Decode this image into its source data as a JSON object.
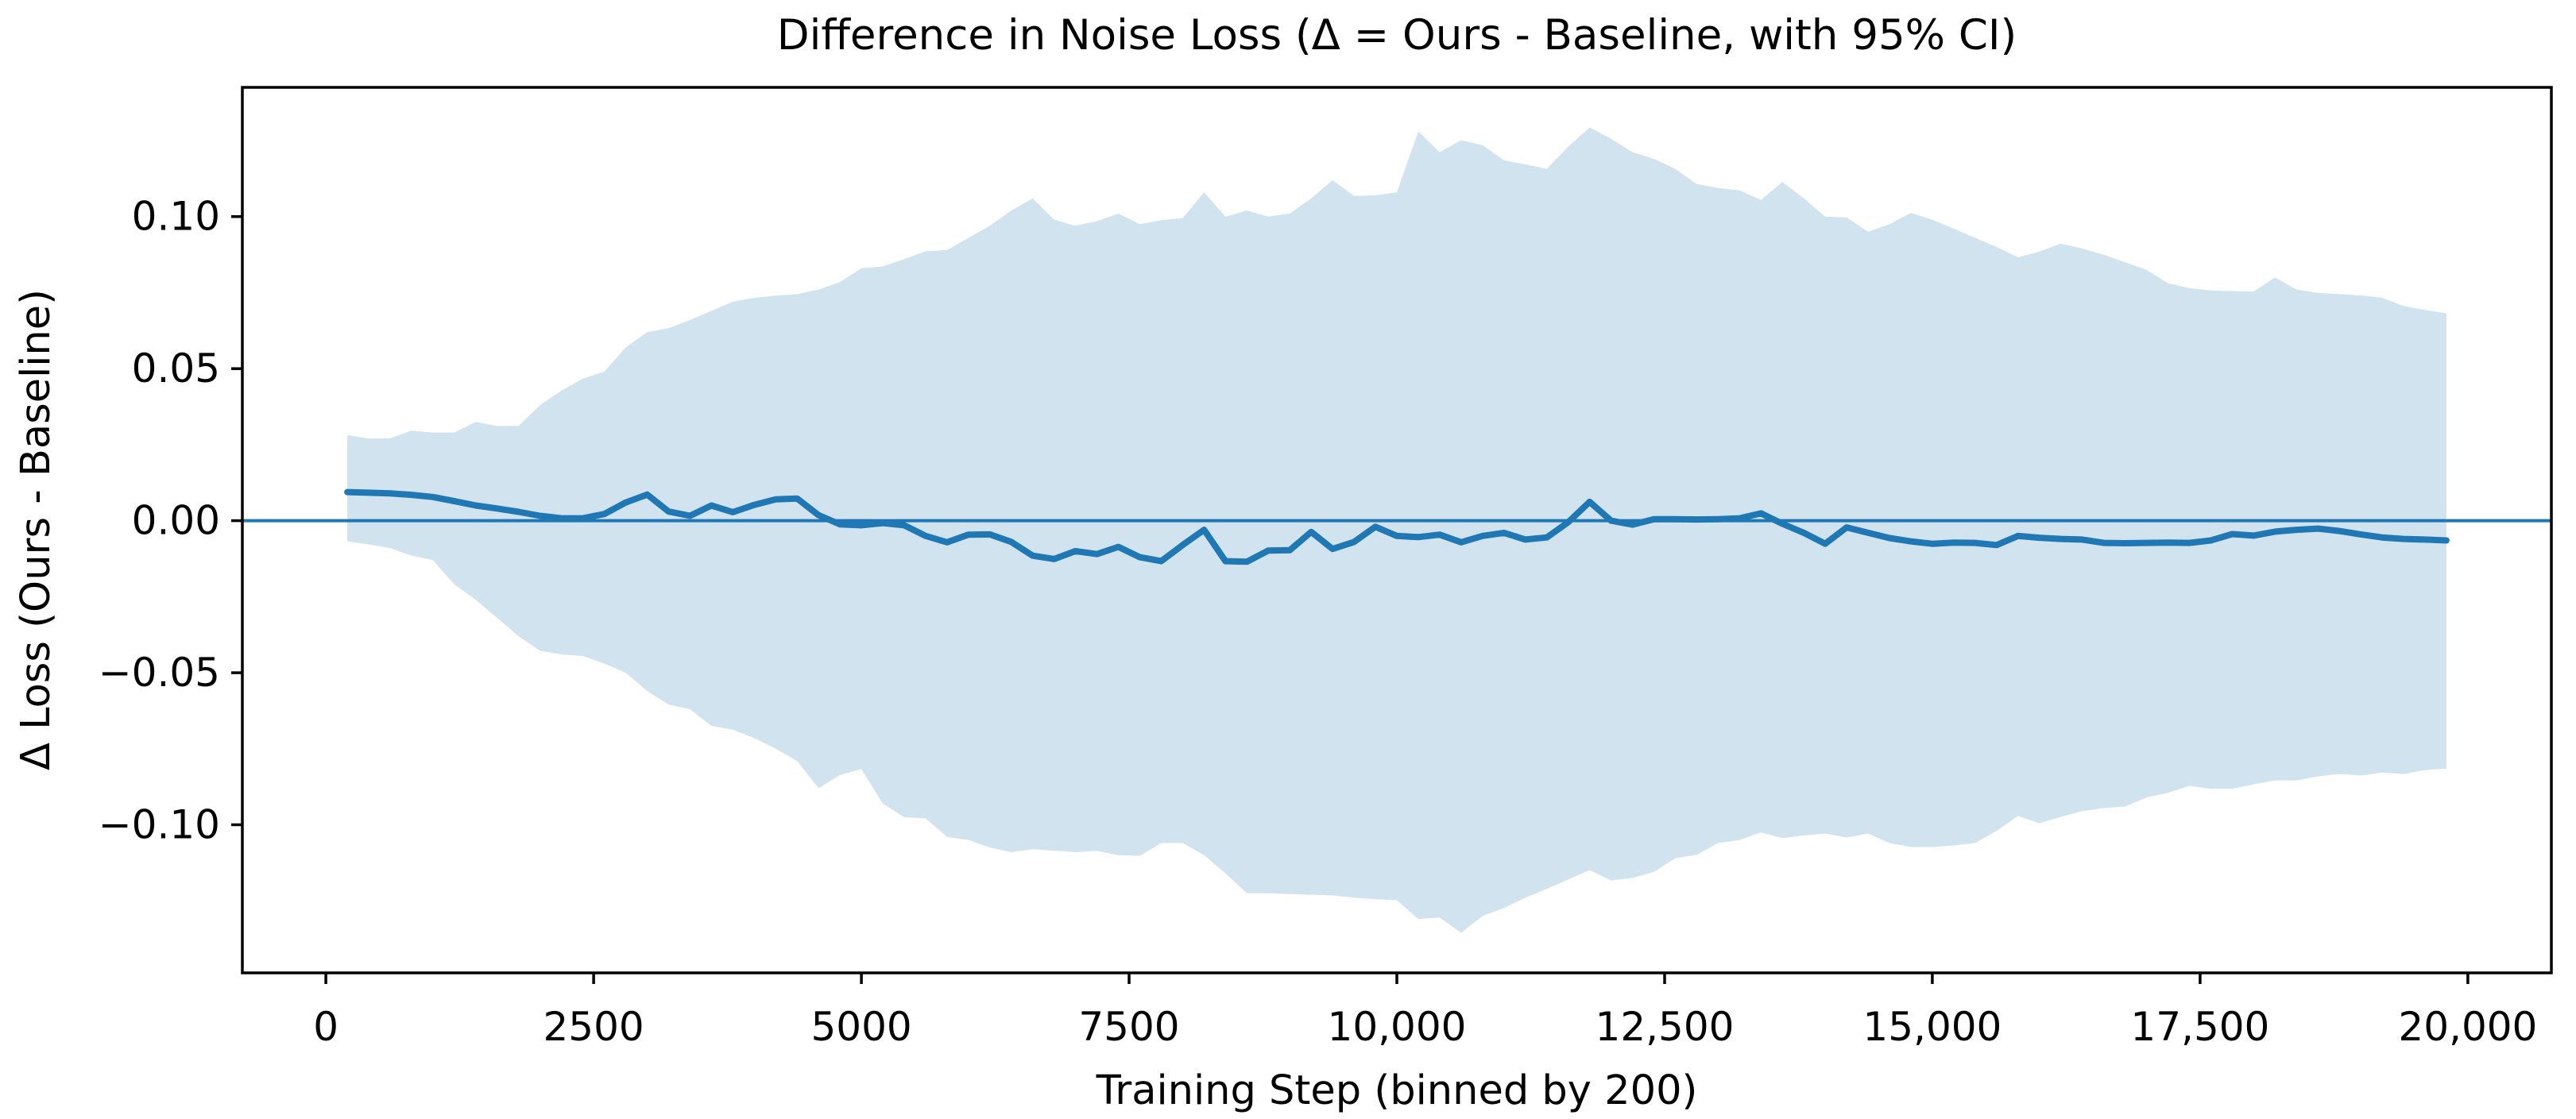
{
  "figure": {
    "background": "#ffffff",
    "title": "Difference in Noise Loss (Δ = Ours - Baseline, with 95% CI)"
  },
  "chart_data": {
    "type": "area",
    "title": "Difference in Noise Loss (Δ = Ours - Baseline, with 95% CI)",
    "xlabel": "Training Step (binned by 200)",
    "ylabel": "Δ Loss (Ours - Baseline)",
    "grid": false,
    "legend": "none",
    "zero_line": 0,
    "xlim": [
      -780,
      20780
    ],
    "ylim": [
      -0.1487,
      0.1425
    ],
    "colors": {
      "line": "#1f77b4",
      "zero_line": "#1f77b4",
      "band": "#d2e3f0",
      "axis": "#000000",
      "background": "#ffffff"
    },
    "xticks": {
      "values": [
        0,
        2500,
        5000,
        7500,
        10000,
        12500,
        15000,
        17500,
        20000
      ],
      "labels": [
        "0",
        "2500",
        "5000",
        "7500",
        "10,000",
        "12,500",
        "15,000",
        "17,500",
        "20,000"
      ]
    },
    "yticks": {
      "values": [
        0.1,
        0.05,
        0.0,
        -0.05,
        -0.1
      ],
      "labels": [
        "0.10",
        "0.05",
        "0.00",
        "−0.05",
        "−0.10"
      ]
    },
    "x": [
      200,
      400,
      600,
      800,
      1000,
      1200,
      1400,
      1600,
      1800,
      2000,
      2200,
      2400,
      2600,
      2800,
      3000,
      3200,
      3400,
      3600,
      3800,
      4000,
      4200,
      4400,
      4600,
      4800,
      5000,
      5200,
      5400,
      5600,
      5800,
      6000,
      6200,
      6400,
      6600,
      6800,
      7000,
      7200,
      7400,
      7600,
      7800,
      8000,
      8200,
      8400,
      8600,
      8800,
      9000,
      9200,
      9400,
      9600,
      9800,
      10000,
      10200,
      10400,
      10600,
      10800,
      11000,
      11200,
      11400,
      11600,
      11800,
      12000,
      12200,
      12400,
      12600,
      12800,
      13000,
      13200,
      13400,
      13600,
      13800,
      14000,
      14200,
      14400,
      14600,
      14800,
      15000,
      15200,
      15400,
      15600,
      15800,
      16000,
      16200,
      16400,
      16600,
      16800,
      17000,
      17200,
      17400,
      17600,
      17800,
      18000,
      18200,
      18400,
      18600,
      18800,
      19000,
      19200,
      19400,
      19600,
      19800
    ],
    "series": [
      {
        "name": "Δ mean (Ours − Baseline)",
        "role": "mean",
        "values": [
          0.0094,
          0.0092,
          0.009,
          0.0085,
          0.0078,
          0.0064,
          0.005,
          0.004,
          0.0029,
          0.0016,
          0.0008,
          0.0008,
          0.0022,
          0.006,
          0.0086,
          0.003,
          0.0016,
          0.005,
          0.0028,
          0.0052,
          0.007,
          0.0073,
          0.0018,
          -0.0012,
          -0.0015,
          -0.0008,
          -0.0015,
          -0.005,
          -0.0071,
          -0.0046,
          -0.0045,
          -0.007,
          -0.0115,
          -0.0126,
          -0.01,
          -0.011,
          -0.0086,
          -0.012,
          -0.0133,
          -0.008,
          -0.003,
          -0.0133,
          -0.0135,
          -0.0098,
          -0.0097,
          -0.0037,
          -0.0093,
          -0.007,
          -0.002,
          -0.005,
          -0.0054,
          -0.0046,
          -0.0071,
          -0.005,
          -0.004,
          -0.0062,
          -0.0055,
          -0.0005,
          0.0062,
          0.0,
          -0.0013,
          0.0005,
          0.0005,
          0.0004,
          0.0005,
          0.0008,
          0.0024,
          -0.001,
          -0.004,
          -0.0076,
          -0.0022,
          -0.004,
          -0.0057,
          -0.0068,
          -0.0076,
          -0.0072,
          -0.0073,
          -0.008,
          -0.005,
          -0.0056,
          -0.006,
          -0.0062,
          -0.0073,
          -0.0074,
          -0.0073,
          -0.0072,
          -0.0073,
          -0.0065,
          -0.0044,
          -0.0049,
          -0.0036,
          -0.003,
          -0.0026,
          -0.0034,
          -0.0045,
          -0.0055,
          -0.006,
          -0.0062,
          -0.0065
        ]
      },
      {
        "name": "95% CI upper",
        "role": "ci_upper",
        "values": [
          0.0282,
          0.027,
          0.0271,
          0.0296,
          0.029,
          0.029,
          0.0325,
          0.0311,
          0.0312,
          0.038,
          0.0428,
          0.0467,
          0.049,
          0.057,
          0.062,
          0.0633,
          0.066,
          0.069,
          0.072,
          0.0733,
          0.074,
          0.0745,
          0.076,
          0.0785,
          0.083,
          0.0836,
          0.086,
          0.0886,
          0.089,
          0.093,
          0.097,
          0.102,
          0.106,
          0.099,
          0.097,
          0.0985,
          0.101,
          0.0975,
          0.0988,
          0.0995,
          0.108,
          0.1,
          0.102,
          0.1,
          0.101,
          0.106,
          0.112,
          0.1068,
          0.107,
          0.108,
          0.128,
          0.1212,
          0.1251,
          0.1235,
          0.1185,
          0.1172,
          0.1157,
          0.123,
          0.1293,
          0.1256,
          0.1212,
          0.119,
          0.1157,
          0.1107,
          0.1094,
          0.1086,
          0.1055,
          0.1114,
          0.106,
          0.1,
          0.0997,
          0.095,
          0.0975,
          0.1012,
          0.099,
          0.096,
          0.093,
          0.09,
          0.0866,
          0.0885,
          0.0911,
          0.0895,
          0.0875,
          0.085,
          0.0825,
          0.0781,
          0.0765,
          0.0757,
          0.0755,
          0.0753,
          0.08,
          0.076,
          0.0749,
          0.0745,
          0.0741,
          0.0733,
          0.0706,
          0.0693,
          0.0682
        ]
      },
      {
        "name": "95% CI lower",
        "role": "ci_lower",
        "values": [
          -0.0068,
          -0.0078,
          -0.009,
          -0.0115,
          -0.013,
          -0.021,
          -0.026,
          -0.032,
          -0.038,
          -0.0428,
          -0.044,
          -0.0445,
          -0.047,
          -0.05,
          -0.056,
          -0.0605,
          -0.062,
          -0.0675,
          -0.0687,
          -0.0715,
          -0.075,
          -0.079,
          -0.088,
          -0.0836,
          -0.0817,
          -0.093,
          -0.0975,
          -0.0979,
          -0.104,
          -0.105,
          -0.1075,
          -0.109,
          -0.108,
          -0.1085,
          -0.109,
          -0.1086,
          -0.11,
          -0.1102,
          -0.106,
          -0.106,
          -0.11,
          -0.116,
          -0.1225,
          -0.1225,
          -0.1228,
          -0.123,
          -0.1232,
          -0.124,
          -0.1245,
          -0.1248,
          -0.131,
          -0.1305,
          -0.1355,
          -0.13,
          -0.1274,
          -0.124,
          -0.1211,
          -0.118,
          -0.1149,
          -0.1183,
          -0.1175,
          -0.1155,
          -0.111,
          -0.1099,
          -0.106,
          -0.105,
          -0.1025,
          -0.1044,
          -0.1035,
          -0.1029,
          -0.1042,
          -0.1029,
          -0.106,
          -0.1073,
          -0.1073,
          -0.1068,
          -0.106,
          -0.102,
          -0.0971,
          -0.0995,
          -0.0974,
          -0.0955,
          -0.0945,
          -0.094,
          -0.091,
          -0.0895,
          -0.0872,
          -0.0882,
          -0.0882,
          -0.0867,
          -0.0854,
          -0.0854,
          -0.0841,
          -0.0833,
          -0.0838,
          -0.0828,
          -0.0833,
          -0.082,
          -0.0815
        ]
      }
    ]
  }
}
